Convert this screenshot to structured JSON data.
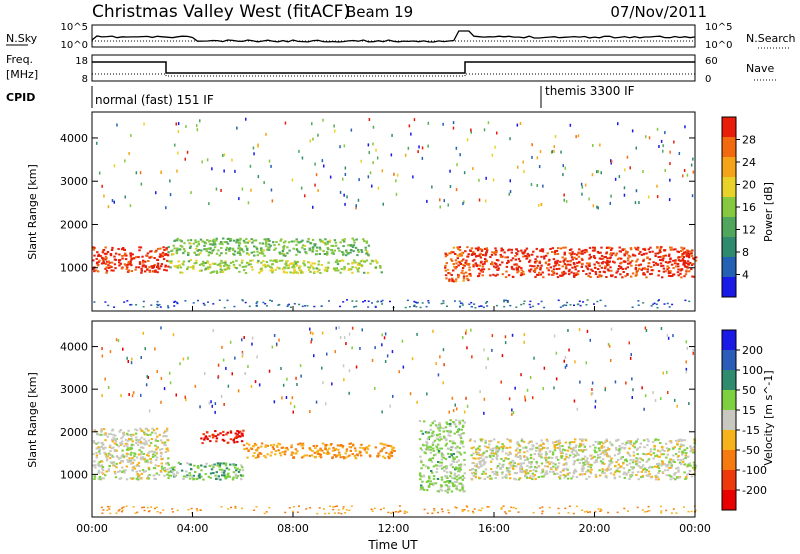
{
  "header": {
    "station": "Christmas Valley West (fitACF)",
    "beam": "Beam 19",
    "date": "07/Nov/2011"
  },
  "noise_panel": {
    "left_label": "N.Sky",
    "left_ticks": [
      "10^5",
      "10^0"
    ],
    "right_label": "N.Search",
    "right_ticks": [
      "10^5",
      "10^0"
    ]
  },
  "freq_panel": {
    "left_label_line1": "Freq.",
    "left_label_line2": "[MHz]",
    "left_ticks": [
      "18",
      "8"
    ],
    "right_label": "Nave",
    "right_ticks": [
      "60",
      "0"
    ]
  },
  "cpid": {
    "label": "CPID",
    "modes": [
      "normal (fast) 151 IF",
      "themis 3300 IF"
    ]
  },
  "x_axis": {
    "label": "Time UT",
    "ticks": [
      "00:00",
      "04:00",
      "08:00",
      "12:00",
      "16:00",
      "20:00",
      "00:00"
    ]
  },
  "colors": {
    "power": [
      "#1a1ae6",
      "#2460b4",
      "#2f8a6e",
      "#4fa65c",
      "#86c840",
      "#e8d22a",
      "#f5a41a",
      "#f26a10",
      "#e81e0a"
    ],
    "velocity": [
      "#1a1ae6",
      "#2a5cb8",
      "#2f8a6e",
      "#7dd040",
      "#c8c8c0",
      "#f5b21a",
      "#f57a10",
      "#ee3a0a",
      "#e80000"
    ]
  },
  "chart_data": [
    {
      "type": "heatmap",
      "name": "power",
      "ylabel": "Slant Range [km]",
      "yticks": [
        1000,
        2000,
        3000,
        4000
      ],
      "xlabel": "",
      "colorbar": {
        "label": "Power [dB]",
        "ticks": [
          "28",
          "24",
          "20",
          "16",
          "12",
          "8",
          "4"
        ],
        "range": [
          0,
          30
        ]
      },
      "features": [
        {
          "t": [
            0.0,
            3.0
          ],
          "range_km": [
            900,
            1500
          ],
          "level_db": 28
        },
        {
          "t": [
            3.0,
            11.0
          ],
          "range_km": [
            1300,
            1700
          ],
          "level_db": 14
        },
        {
          "t": [
            3.0,
            11.5
          ],
          "range_km": [
            900,
            1200
          ],
          "level_db": 16
        },
        {
          "t": [
            14.0,
            15.0
          ],
          "range_km": [
            700,
            1500
          ],
          "level_db": 26
        },
        {
          "t": [
            15.0,
            24.0
          ],
          "range_km": [
            800,
            1500
          ],
          "level_db": 28
        }
      ]
    },
    {
      "type": "heatmap",
      "name": "velocity",
      "ylabel": "Slant Range [km]",
      "yticks": [
        1000,
        2000,
        3000,
        4000
      ],
      "xlabel": "Time UT",
      "colorbar": {
        "label": "Velocity [m s^-1]",
        "ticks": [
          "200",
          "100",
          "50",
          "15",
          "-15",
          "-50",
          "-100",
          "-200"
        ],
        "range": [
          -250,
          250
        ]
      },
      "features": [
        {
          "t": [
            0.0,
            3.0
          ],
          "range_km": [
            900,
            2100
          ],
          "velocity_ms": 0
        },
        {
          "t": [
            4.3,
            6.0
          ],
          "range_km": [
            1750,
            2050
          ],
          "velocity_ms": -200
        },
        {
          "t": [
            6.0,
            12.0
          ],
          "range_km": [
            1400,
            1750
          ],
          "velocity_ms": -80
        },
        {
          "t": [
            3.0,
            6.0
          ],
          "range_km": [
            900,
            1300
          ],
          "velocity_ms": 60
        },
        {
          "t": [
            13.0,
            14.8
          ],
          "range_km": [
            600,
            2300
          ],
          "velocity_ms": 40
        },
        {
          "t": [
            15.0,
            24.0
          ],
          "range_km": [
            900,
            1850
          ],
          "velocity_ms": 0
        }
      ]
    }
  ]
}
